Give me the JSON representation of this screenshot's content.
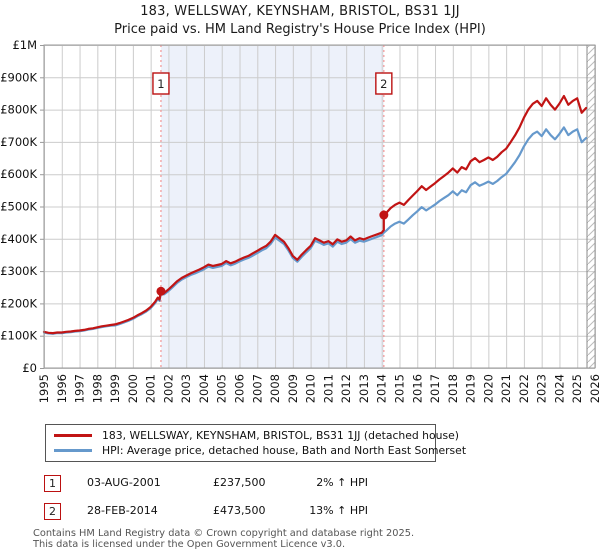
{
  "chart_data": {
    "type": "line",
    "title": "183, WELLSWAY, KEYNSHAM, BRISTOL, BS31 1JJ",
    "subtitle": "Price paid vs. HM Land Registry's House Price Index (HPI)",
    "xlim": [
      1995,
      2026
    ],
    "ylim": [
      0,
      1000
    ],
    "grid": true,
    "legend_position": "below",
    "yticks": [
      {
        "v": 0,
        "label": "£0"
      },
      {
        "v": 100,
        "label": "£100K"
      },
      {
        "v": 200,
        "label": "£200K"
      },
      {
        "v": 300,
        "label": "£300K"
      },
      {
        "v": 400,
        "label": "£400K"
      },
      {
        "v": 500,
        "label": "£500K"
      },
      {
        "v": 600,
        "label": "£600K"
      },
      {
        "v": 700,
        "label": "£700K"
      },
      {
        "v": 800,
        "label": "£800K"
      },
      {
        "v": 900,
        "label": "£900K"
      },
      {
        "v": 1000,
        "label": "£1M"
      }
    ],
    "xticks": [
      1995,
      1996,
      1997,
      1998,
      1999,
      2000,
      2001,
      2002,
      2003,
      2004,
      2005,
      2006,
      2007,
      2008,
      2009,
      2010,
      2011,
      2012,
      2013,
      2014,
      2015,
      2016,
      2017,
      2018,
      2019,
      2020,
      2021,
      2022,
      2023,
      2024,
      2025,
      2026
    ],
    "units": "GBP thousands",
    "colors": {
      "property": "#c11414",
      "hpi": "#6699cc",
      "grid": "#cccccc",
      "plot_border": "#999999",
      "shade": "#edf1fa",
      "event_line": "#f29494",
      "marker_box_border": "#bb1111",
      "hatch": "#bbbbbb"
    },
    "shaded_region": {
      "from": 2001.58,
      "to": 2014.12
    },
    "hatch_region": {
      "from": 2025.55,
      "to": 2026
    },
    "markers": [
      {
        "num": "1",
        "x": 2001.58,
        "y": 237.5
      },
      {
        "num": "2",
        "x": 2014.12,
        "y": 473.5
      }
    ],
    "legend": [
      {
        "label": "183, WELLSWAY, KEYNSHAM, BRISTOL, BS31 1JJ (detached house)",
        "color": "#c11414"
      },
      {
        "label": "HPI: Average price, detached house, Bath and North East Somerset",
        "color": "#6699cc"
      }
    ],
    "series": [
      {
        "name": "hpi",
        "color": "#6699cc",
        "points": [
          [
            1995.0,
            110
          ],
          [
            1995.25,
            107
          ],
          [
            1995.5,
            106
          ],
          [
            1995.75,
            108
          ],
          [
            1996.0,
            108
          ],
          [
            1996.25,
            110
          ],
          [
            1996.5,
            111
          ],
          [
            1996.75,
            113
          ],
          [
            1997.0,
            114
          ],
          [
            1997.25,
            116
          ],
          [
            1997.5,
            119
          ],
          [
            1997.75,
            121
          ],
          [
            1998.0,
            124
          ],
          [
            1998.25,
            127
          ],
          [
            1998.5,
            129
          ],
          [
            1998.75,
            131
          ],
          [
            1999.0,
            132
          ],
          [
            1999.25,
            136
          ],
          [
            1999.5,
            141
          ],
          [
            1999.75,
            146
          ],
          [
            2000.0,
            152
          ],
          [
            2000.25,
            160
          ],
          [
            2000.5,
            167
          ],
          [
            2000.75,
            175
          ],
          [
            2001.0,
            185
          ],
          [
            2001.25,
            201
          ],
          [
            2001.4,
            214
          ],
          [
            2001.5,
            208
          ],
          [
            2001.58,
            233
          ],
          [
            2001.75,
            228
          ],
          [
            2002.0,
            238
          ],
          [
            2002.25,
            251
          ],
          [
            2002.5,
            264
          ],
          [
            2002.75,
            274
          ],
          [
            2003.0,
            281
          ],
          [
            2003.25,
            288
          ],
          [
            2003.5,
            293
          ],
          [
            2003.75,
            299
          ],
          [
            2004.0,
            306
          ],
          [
            2004.25,
            314
          ],
          [
            2004.5,
            310
          ],
          [
            2004.75,
            313
          ],
          [
            2005.0,
            316
          ],
          [
            2005.25,
            325
          ],
          [
            2005.5,
            318
          ],
          [
            2005.75,
            323
          ],
          [
            2006.0,
            330
          ],
          [
            2006.25,
            336
          ],
          [
            2006.5,
            341
          ],
          [
            2006.75,
            348
          ],
          [
            2007.0,
            356
          ],
          [
            2007.25,
            364
          ],
          [
            2007.5,
            371
          ],
          [
            2007.75,
            384
          ],
          [
            2008.0,
            404
          ],
          [
            2008.25,
            394
          ],
          [
            2008.5,
            384
          ],
          [
            2008.75,
            364
          ],
          [
            2009.0,
            341
          ],
          [
            2009.25,
            329
          ],
          [
            2009.5,
            344
          ],
          [
            2009.75,
            358
          ],
          [
            2010.0,
            371
          ],
          [
            2010.25,
            394
          ],
          [
            2010.5,
            388
          ],
          [
            2010.75,
            381
          ],
          [
            2011.0,
            386
          ],
          [
            2011.25,
            376
          ],
          [
            2011.5,
            391
          ],
          [
            2011.75,
            384
          ],
          [
            2012.0,
            388
          ],
          [
            2012.25,
            399
          ],
          [
            2012.5,
            388
          ],
          [
            2012.75,
            394
          ],
          [
            2013.0,
            391
          ],
          [
            2013.25,
            396
          ],
          [
            2013.5,
            401
          ],
          [
            2013.75,
            406
          ],
          [
            2014.0,
            411
          ],
          [
            2014.12,
            419
          ],
          [
            2014.25,
            425
          ],
          [
            2014.5,
            438
          ],
          [
            2014.75,
            447
          ],
          [
            2015.0,
            453
          ],
          [
            2015.25,
            447
          ],
          [
            2015.5,
            460
          ],
          [
            2015.75,
            473
          ],
          [
            2016.0,
            485
          ],
          [
            2016.25,
            498
          ],
          [
            2016.5,
            488
          ],
          [
            2016.75,
            497
          ],
          [
            2017.0,
            506
          ],
          [
            2017.25,
            517
          ],
          [
            2017.5,
            526
          ],
          [
            2017.75,
            535
          ],
          [
            2018.0,
            547
          ],
          [
            2018.25,
            535
          ],
          [
            2018.5,
            550
          ],
          [
            2018.75,
            544
          ],
          [
            2019.0,
            566
          ],
          [
            2019.25,
            575
          ],
          [
            2019.5,
            564
          ],
          [
            2019.75,
            570
          ],
          [
            2020.0,
            577
          ],
          [
            2020.25,
            570
          ],
          [
            2020.5,
            579
          ],
          [
            2020.75,
            591
          ],
          [
            2021.0,
            601
          ],
          [
            2021.25,
            619
          ],
          [
            2021.5,
            637
          ],
          [
            2021.75,
            659
          ],
          [
            2022.0,
            686
          ],
          [
            2022.25,
            708
          ],
          [
            2022.5,
            724
          ],
          [
            2022.75,
            732
          ],
          [
            2023.0,
            718
          ],
          [
            2023.25,
            739
          ],
          [
            2023.5,
            721
          ],
          [
            2023.75,
            708
          ],
          [
            2024.0,
            725
          ],
          [
            2024.25,
            745
          ],
          [
            2024.5,
            721
          ],
          [
            2024.75,
            732
          ],
          [
            2025.0,
            739
          ],
          [
            2025.25,
            699
          ],
          [
            2025.5,
            712
          ]
        ]
      },
      {
        "name": "property",
        "color": "#c11414",
        "points": [
          [
            1995.0,
            112
          ],
          [
            1995.25,
            109
          ],
          [
            1995.5,
            108
          ],
          [
            1995.75,
            110
          ],
          [
            1996.0,
            110
          ],
          [
            1996.25,
            112
          ],
          [
            1996.5,
            113
          ],
          [
            1996.75,
            115
          ],
          [
            1997.0,
            116
          ],
          [
            1997.25,
            118
          ],
          [
            1997.5,
            121
          ],
          [
            1997.75,
            123
          ],
          [
            1998.0,
            126
          ],
          [
            1998.25,
            129
          ],
          [
            1998.5,
            131
          ],
          [
            1998.75,
            133
          ],
          [
            1999.0,
            135
          ],
          [
            1999.25,
            139
          ],
          [
            1999.5,
            144
          ],
          [
            1999.75,
            149
          ],
          [
            2000.0,
            155
          ],
          [
            2000.25,
            163
          ],
          [
            2000.5,
            170
          ],
          [
            2000.75,
            178
          ],
          [
            2001.0,
            189
          ],
          [
            2001.25,
            205
          ],
          [
            2001.4,
            218
          ],
          [
            2001.5,
            212
          ],
          [
            2001.58,
            237.5
          ],
          [
            2001.75,
            232
          ],
          [
            2002.0,
            243
          ],
          [
            2002.25,
            256
          ],
          [
            2002.5,
            269
          ],
          [
            2002.75,
            279
          ],
          [
            2003.0,
            286
          ],
          [
            2003.25,
            293
          ],
          [
            2003.5,
            299
          ],
          [
            2003.75,
            305
          ],
          [
            2004.0,
            312
          ],
          [
            2004.25,
            320
          ],
          [
            2004.5,
            316
          ],
          [
            2004.75,
            319
          ],
          [
            2005.0,
            322
          ],
          [
            2005.25,
            331
          ],
          [
            2005.5,
            324
          ],
          [
            2005.75,
            329
          ],
          [
            2006.0,
            336
          ],
          [
            2006.25,
            342
          ],
          [
            2006.5,
            347
          ],
          [
            2006.75,
            355
          ],
          [
            2007.0,
            363
          ],
          [
            2007.25,
            371
          ],
          [
            2007.5,
            378
          ],
          [
            2007.75,
            391
          ],
          [
            2008.0,
            412
          ],
          [
            2008.25,
            402
          ],
          [
            2008.5,
            391
          ],
          [
            2008.75,
            371
          ],
          [
            2009.0,
            347
          ],
          [
            2009.25,
            335
          ],
          [
            2009.5,
            351
          ],
          [
            2009.75,
            365
          ],
          [
            2010.0,
            378
          ],
          [
            2010.25,
            402
          ],
          [
            2010.5,
            395
          ],
          [
            2010.75,
            388
          ],
          [
            2011.0,
            393
          ],
          [
            2011.25,
            383
          ],
          [
            2011.5,
            398
          ],
          [
            2011.75,
            391
          ],
          [
            2012.0,
            395
          ],
          [
            2012.25,
            407
          ],
          [
            2012.5,
            395
          ],
          [
            2012.75,
            402
          ],
          [
            2013.0,
            398
          ],
          [
            2013.25,
            404
          ],
          [
            2013.5,
            409
          ],
          [
            2013.75,
            414
          ],
          [
            2014.0,
            419
          ],
          [
            2014.12,
            427
          ],
          [
            2014.12,
            473.5
          ],
          [
            2014.25,
            480
          ],
          [
            2014.5,
            495
          ],
          [
            2014.75,
            505
          ],
          [
            2015.0,
            512
          ],
          [
            2015.25,
            505
          ],
          [
            2015.5,
            520
          ],
          [
            2015.75,
            534
          ],
          [
            2016.0,
            548
          ],
          [
            2016.25,
            563
          ],
          [
            2016.5,
            551
          ],
          [
            2016.75,
            562
          ],
          [
            2017.0,
            572
          ],
          [
            2017.25,
            584
          ],
          [
            2017.5,
            594
          ],
          [
            2017.75,
            605
          ],
          [
            2018.0,
            618
          ],
          [
            2018.25,
            605
          ],
          [
            2018.5,
            622
          ],
          [
            2018.75,
            615
          ],
          [
            2019.0,
            640
          ],
          [
            2019.25,
            650
          ],
          [
            2019.5,
            637
          ],
          [
            2019.75,
            644
          ],
          [
            2020.0,
            652
          ],
          [
            2020.25,
            644
          ],
          [
            2020.5,
            654
          ],
          [
            2020.75,
            668
          ],
          [
            2021.0,
            679
          ],
          [
            2021.25,
            699
          ],
          [
            2021.5,
            720
          ],
          [
            2021.75,
            745
          ],
          [
            2022.0,
            775
          ],
          [
            2022.25,
            800
          ],
          [
            2022.5,
            818
          ],
          [
            2022.75,
            827
          ],
          [
            2023.0,
            811
          ],
          [
            2023.25,
            835
          ],
          [
            2023.5,
            815
          ],
          [
            2023.75,
            800
          ],
          [
            2024.0,
            819
          ],
          [
            2024.25,
            842
          ],
          [
            2024.5,
            815
          ],
          [
            2024.75,
            827
          ],
          [
            2025.0,
            835
          ],
          [
            2025.25,
            790
          ],
          [
            2025.5,
            805
          ]
        ]
      }
    ]
  },
  "annotations": [
    {
      "num": "1",
      "date": "03-AUG-2001",
      "price": "£237,500",
      "pct": "2% ↑ HPI"
    },
    {
      "num": "2",
      "date": "28-FEB-2014",
      "price": "£473,500",
      "pct": "13% ↑ HPI"
    }
  ],
  "footer": {
    "line1": "Contains HM Land Registry data © Crown copyright and database right 2025.",
    "line2": "This data is licensed under the Open Government Licence v3.0."
  }
}
